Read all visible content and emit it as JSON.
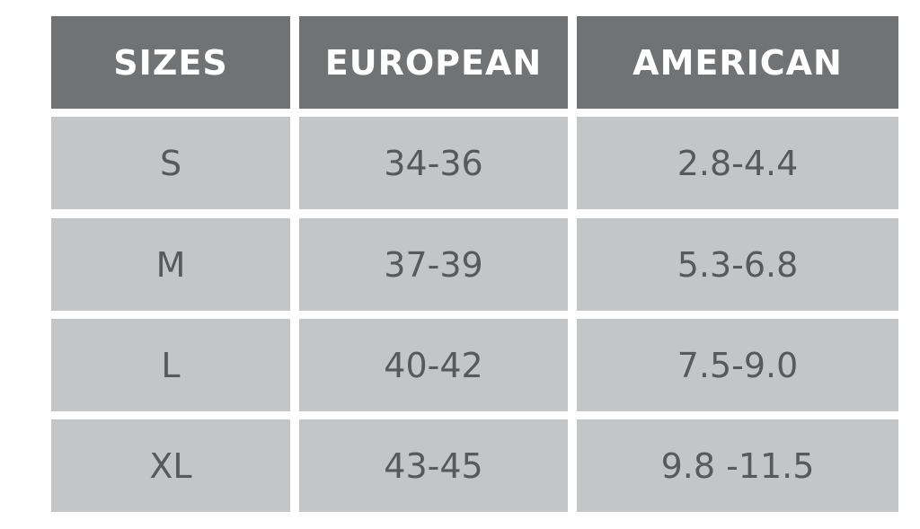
{
  "table": {
    "columns": [
      "SIZES",
      "EUROPEAN",
      "AMERICAN"
    ],
    "rows": [
      [
        "S",
        "34-36",
        "2.8-4.4"
      ],
      [
        "M",
        "37-39",
        "5.3-6.8"
      ],
      [
        "L",
        "40-42",
        "7.5-9.0"
      ],
      [
        "XL",
        "43-45",
        "9.8 -11.5"
      ]
    ]
  }
}
